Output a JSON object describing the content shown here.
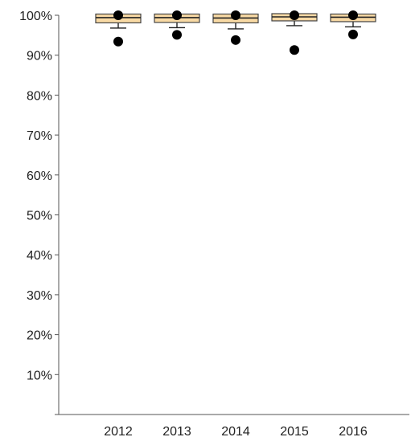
{
  "chart_data": {
    "type": "box",
    "title": "",
    "xlabel": "",
    "ylabel": "",
    "ylim": [
      0,
      100
    ],
    "y_tick_labels": [
      "100%",
      "90%",
      "80%",
      "70%",
      "60%",
      "50%",
      "40%",
      "30%",
      "20%",
      "10%"
    ],
    "y_ticks": [
      100,
      90,
      80,
      70,
      60,
      50,
      40,
      30,
      20,
      10
    ],
    "categories": [
      "2012",
      "2013",
      "2014",
      "2015",
      "2016"
    ],
    "boxes": [
      {
        "category": "2012",
        "q1": 98.6,
        "median": 99.4,
        "q3": 99.8,
        "whisker_low": 96.8,
        "whisker_high": 99.9,
        "outliers": [
          100.0,
          93.4
        ]
      },
      {
        "category": "2013",
        "q1": 98.7,
        "median": 99.4,
        "q3": 99.8,
        "whisker_low": 96.9,
        "whisker_high": 99.9,
        "outliers": [
          100.0,
          95.1
        ]
      },
      {
        "category": "2014",
        "q1": 98.6,
        "median": 99.3,
        "q3": 99.8,
        "whisker_low": 96.6,
        "whisker_high": 99.9,
        "outliers": [
          100.0,
          93.8
        ]
      },
      {
        "category": "2015",
        "q1": 99.1,
        "median": 99.6,
        "q3": 99.9,
        "whisker_low": 97.4,
        "whisker_high": 100.0,
        "outliers": [
          100.0,
          91.3
        ]
      },
      {
        "category": "2016",
        "q1": 98.9,
        "median": 99.5,
        "q3": 99.8,
        "whisker_low": 97.1,
        "whisker_high": 99.9,
        "outliers": [
          100.0,
          95.2
        ]
      }
    ],
    "grid": false,
    "legend": "none",
    "colors": {
      "box_fill": "#F8D9A4",
      "box_stroke": "#444444",
      "outlier": "#000000",
      "axis": "#555555"
    }
  }
}
